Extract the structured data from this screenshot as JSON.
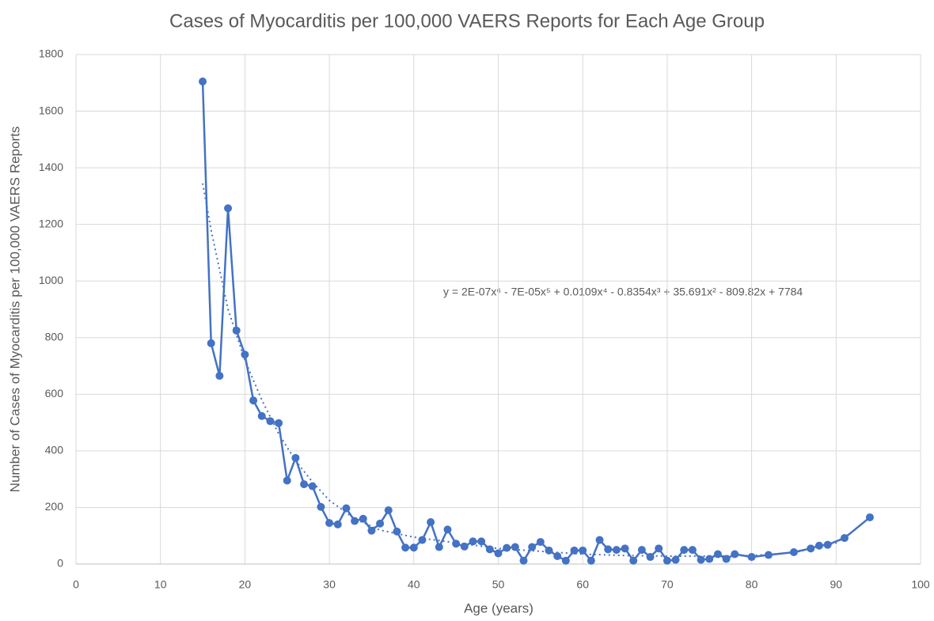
{
  "chart_data": {
    "type": "line",
    "title": "Cases of Myocarditis per 100,000 VAERS Reports for Each Age Group",
    "x_label": "Age (years)",
    "y_label": "Number of Cases of Myocarditis per 100,000 VAERS Reports",
    "annotation": "y = 2E-07x⁶ - 7E-05x⁵ + 0.0109x⁴ - 0.8354x³ + 35.691x² - 809.82x + 7784",
    "xlim": [
      0,
      100
    ],
    "xticks": [
      0,
      10,
      20,
      30,
      40,
      50,
      60,
      70,
      80,
      90,
      100
    ],
    "ylim": [
      0,
      1800
    ],
    "yticks": [
      0,
      200,
      400,
      600,
      800,
      1000,
      1200,
      1400,
      1600,
      1800
    ],
    "grid": true,
    "series": [
      {
        "color": "#4472c4",
        "x": [
          15,
          16,
          17,
          18,
          19,
          20,
          21,
          22,
          23,
          24,
          25,
          26,
          27,
          28,
          29,
          30,
          31,
          32,
          33,
          34,
          35,
          36,
          37,
          38,
          39,
          40,
          41,
          42,
          43,
          44,
          45,
          46,
          47,
          48,
          49,
          50,
          51,
          52,
          53,
          54,
          55,
          56,
          57,
          58,
          59,
          60,
          61,
          62,
          63,
          64,
          65,
          66,
          67,
          68,
          69,
          70,
          71,
          72,
          73,
          74,
          75,
          76,
          77,
          78,
          80,
          82,
          85,
          87,
          88,
          89,
          91,
          94
        ],
        "values": [
          1705,
          780,
          665,
          1257,
          825,
          740,
          578,
          523,
          505,
          498,
          295,
          375,
          282,
          275,
          202,
          145,
          140,
          197,
          152,
          160,
          118,
          143,
          190,
          115,
          58,
          58,
          85,
          148,
          60,
          122,
          72,
          62,
          80,
          80,
          52,
          38,
          57,
          60,
          12,
          60,
          78,
          48,
          28,
          12,
          48,
          48,
          12,
          85,
          52,
          50,
          55,
          12,
          50,
          25,
          55,
          12,
          15,
          50,
          50,
          15,
          18,
          35,
          18,
          35,
          25,
          32,
          42,
          55,
          65,
          68,
          92,
          165
        ]
      }
    ],
    "trendline": {
      "color": "#4472c4",
      "style": "dotted",
      "x": [
        15,
        16,
        18,
        20,
        22,
        24,
        26,
        28,
        30,
        33,
        36,
        40,
        45,
        50,
        55,
        60,
        65,
        70,
        75,
        80,
        85,
        90,
        92,
        94
      ],
      "values": [
        1345,
        1180,
        900,
        720,
        580,
        460,
        365,
        290,
        225,
        160,
        120,
        95,
        75,
        55,
        45,
        35,
        30,
        28,
        28,
        30,
        40,
        75,
        115,
        165
      ]
    }
  }
}
